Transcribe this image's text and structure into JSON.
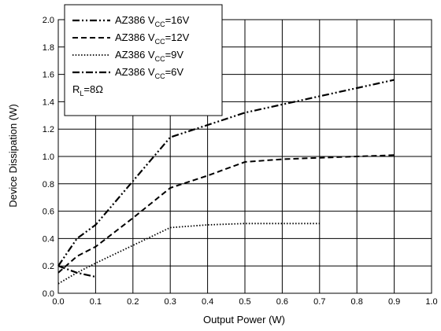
{
  "chart_data": {
    "type": "line",
    "xlabel": "Output Power (W)",
    "ylabel": "Device Dissipation (W)",
    "xlim": [
      0.0,
      1.0
    ],
    "ylim": [
      0.0,
      2.0
    ],
    "x_ticks": [
      "0.0",
      "0.1",
      "0.2",
      "0.3",
      "0.4",
      "0.5",
      "0.6",
      "0.7",
      "0.8",
      "0.9",
      "1.0"
    ],
    "y_ticks": [
      "0.0",
      "0.2",
      "0.4",
      "0.6",
      "0.8",
      "1.0",
      "1.2",
      "1.4",
      "1.6",
      "1.8",
      "2.0"
    ],
    "grid": true,
    "legend_placement": "top-left",
    "legend": [
      {
        "main": "AZ386 V",
        "sub": "CC",
        "tail": "=16V"
      },
      {
        "main": "AZ386 V",
        "sub": "CC",
        "tail": "=12V"
      },
      {
        "main": "AZ386 V",
        "sub": "CC",
        "tail": "=9V"
      },
      {
        "main": "AZ386 V",
        "sub": "CC",
        "tail": "=6V"
      }
    ],
    "annotation": {
      "main": "R",
      "sub": "L",
      "tail": "=8Ω"
    },
    "series": [
      {
        "name": "AZ386 VCC=16V",
        "dash": "dash-dot-dot",
        "x": [
          0.0,
          0.05,
          0.1,
          0.2,
          0.3,
          0.4,
          0.5,
          0.6,
          0.7,
          0.8,
          0.9
        ],
        "y": [
          0.2,
          0.4,
          0.5,
          0.82,
          1.14,
          1.23,
          1.32,
          1.38,
          1.44,
          1.5,
          1.56
        ]
      },
      {
        "name": "AZ386 VCC=12V",
        "dash": "dash",
        "x": [
          0.0,
          0.05,
          0.1,
          0.2,
          0.3,
          0.4,
          0.5,
          0.6,
          0.7,
          0.8,
          0.9
        ],
        "y": [
          0.15,
          0.27,
          0.34,
          0.55,
          0.77,
          0.86,
          0.96,
          0.98,
          0.99,
          1.0,
          1.01
        ]
      },
      {
        "name": "AZ386 VCC=9V",
        "dash": "dot",
        "x": [
          0.0,
          0.05,
          0.1,
          0.2,
          0.3,
          0.4,
          0.5,
          0.6,
          0.7
        ],
        "y": [
          0.07,
          0.15,
          0.22,
          0.35,
          0.48,
          0.5,
          0.51,
          0.51,
          0.51
        ]
      },
      {
        "name": "AZ386 VCC=6V",
        "dash": "dash-dot",
        "x": [
          0.0,
          0.05,
          0.1
        ],
        "y": [
          0.2,
          0.15,
          0.12
        ]
      }
    ],
    "colors": {
      "line": "#000000",
      "grid": "#000000",
      "background": "#ffffff"
    }
  }
}
